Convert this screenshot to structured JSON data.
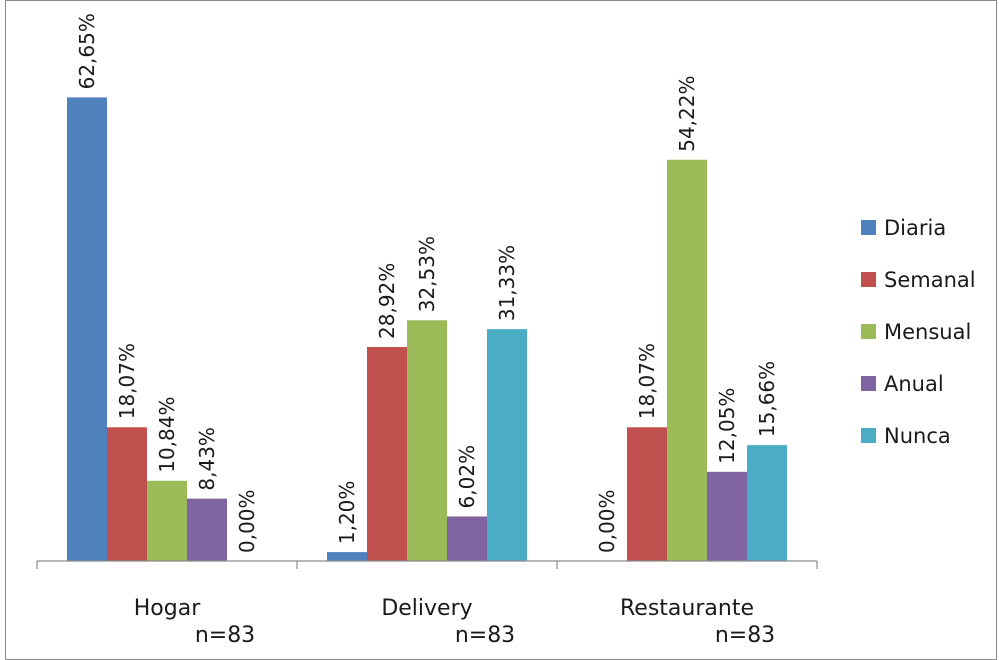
{
  "chart_data": {
    "type": "bar",
    "categories": [
      "Hogar",
      "Delivery",
      "Restaurante"
    ],
    "category_notes": [
      "n=83",
      "n=83",
      "n=83"
    ],
    "series": [
      {
        "name": "Diaria",
        "color": "#4F81BD",
        "values": [
          62.65,
          1.2,
          0.0
        ],
        "labels": [
          "62,65%",
          "1,20%",
          "0,00%"
        ]
      },
      {
        "name": "Semanal",
        "color": "#C0504D",
        "values": [
          18.07,
          28.92,
          18.07
        ],
        "labels": [
          "18,07%",
          "28,92%",
          "18,07%"
        ]
      },
      {
        "name": "Mensual",
        "color": "#9BBB59",
        "values": [
          10.84,
          32.53,
          54.22
        ],
        "labels": [
          "10,84%",
          "32,53%",
          "54,22%"
        ]
      },
      {
        "name": "Anual",
        "color": "#8064A2",
        "values": [
          8.43,
          6.02,
          12.05
        ],
        "labels": [
          "8,43%",
          "6,02%",
          "12,05%"
        ]
      },
      {
        "name": "Nunca",
        "color": "#4BACC6",
        "values": [
          0.0,
          31.33,
          15.66
        ],
        "labels": [
          "0,00%",
          "31,33%",
          "15,66%"
        ]
      }
    ],
    "ylim": [
      0,
      70
    ],
    "y_axis_visible": false,
    "grid": false,
    "legend": "right"
  }
}
